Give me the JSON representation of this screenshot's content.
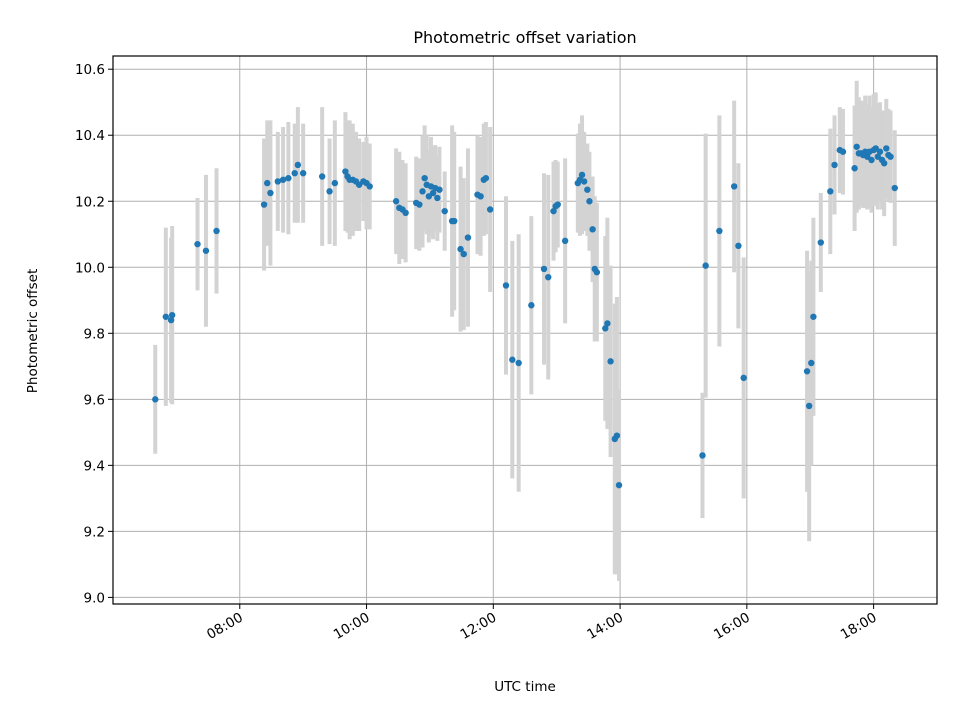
{
  "chart_data": {
    "type": "scatter",
    "title": "Photometric offset variation",
    "xlabel": "UTC time",
    "ylabel": "Photometric offset",
    "x_ticks": [
      "08:00",
      "10:00",
      "12:00",
      "14:00",
      "16:00",
      "18:00"
    ],
    "y_ticks": [
      "9.0",
      "9.2",
      "9.4",
      "9.6",
      "9.8",
      "10.0",
      "10.2",
      "10.4",
      "10.6"
    ],
    "x_tick_values": [
      "08:00",
      "10:00",
      "12:00",
      "14:00",
      "16:00",
      "18:00"
    ],
    "y_tick_values": [
      9.0,
      9.2,
      9.4,
      9.6,
      9.8,
      10.0,
      10.2,
      10.4,
      10.6
    ],
    "xlim": [
      "06:00",
      "19:00"
    ],
    "ylim": [
      8.98,
      10.64
    ],
    "grid": true,
    "colors": {
      "point": "#1f77b4",
      "errorbar": "#d3d3d3",
      "grid": "#b0b0b0"
    },
    "series": [
      {
        "points": [
          {
            "t": "06:40",
            "y": 9.6,
            "err": 0.165
          },
          {
            "t": "06:50",
            "y": 9.85,
            "err": 0.27
          },
          {
            "t": "06:55",
            "y": 9.84,
            "err": 0.25
          },
          {
            "t": "06:56",
            "y": 9.855,
            "err": 0.27
          },
          {
            "t": "07:20",
            "y": 10.07,
            "err": 0.14
          },
          {
            "t": "07:28",
            "y": 10.05,
            "err": 0.23
          },
          {
            "t": "07:38",
            "y": 10.11,
            "err": 0.19
          },
          {
            "t": "08:23",
            "y": 10.19,
            "err": 0.2
          },
          {
            "t": "08:26",
            "y": 10.255,
            "err": 0.19
          },
          {
            "t": "08:29",
            "y": 10.225,
            "err": 0.22
          },
          {
            "t": "08:36",
            "y": 10.26,
            "err": 0.15
          },
          {
            "t": "08:41",
            "y": 10.265,
            "err": 0.16
          },
          {
            "t": "08:46",
            "y": 10.27,
            "err": 0.17
          },
          {
            "t": "08:52",
            "y": 10.285,
            "err": 0.15
          },
          {
            "t": "08:55",
            "y": 10.31,
            "err": 0.175
          },
          {
            "t": "09:00",
            "y": 10.285,
            "err": 0.15
          },
          {
            "t": "09:18",
            "y": 10.275,
            "err": 0.21
          },
          {
            "t": "09:25",
            "y": 10.23,
            "err": 0.16
          },
          {
            "t": "09:30",
            "y": 10.255,
            "err": 0.19
          },
          {
            "t": "09:40",
            "y": 10.29,
            "err": 0.18
          },
          {
            "t": "09:42",
            "y": 10.275,
            "err": 0.17
          },
          {
            "t": "09:44",
            "y": 10.265,
            "err": 0.18
          },
          {
            "t": "09:47",
            "y": 10.265,
            "err": 0.17
          },
          {
            "t": "09:50",
            "y": 10.26,
            "err": 0.15
          },
          {
            "t": "09:53",
            "y": 10.25,
            "err": 0.14
          },
          {
            "t": "09:57",
            "y": 10.26,
            "err": 0.12
          },
          {
            "t": "10:00",
            "y": 10.255,
            "err": 0.14
          },
          {
            "t": "10:03",
            "y": 10.245,
            "err": 0.13
          },
          {
            "t": "10:28",
            "y": 10.2,
            "err": 0.16
          },
          {
            "t": "10:31",
            "y": 10.18,
            "err": 0.17
          },
          {
            "t": "10:34",
            "y": 10.175,
            "err": 0.15
          },
          {
            "t": "10:37",
            "y": 10.165,
            "err": 0.15
          },
          {
            "t": "10:47",
            "y": 10.195,
            "err": 0.14
          },
          {
            "t": "10:50",
            "y": 10.19,
            "err": 0.14
          },
          {
            "t": "10:53",
            "y": 10.23,
            "err": 0.17
          },
          {
            "t": "10:55",
            "y": 10.27,
            "err": 0.16
          },
          {
            "t": "10:57",
            "y": 10.25,
            "err": 0.15
          },
          {
            "t": "10:59",
            "y": 10.215,
            "err": 0.14
          },
          {
            "t": "11:01",
            "y": 10.245,
            "err": 0.15
          },
          {
            "t": "11:03",
            "y": 10.225,
            "err": 0.14
          },
          {
            "t": "11:05",
            "y": 10.24,
            "err": 0.13
          },
          {
            "t": "11:07",
            "y": 10.21,
            "err": 0.13
          },
          {
            "t": "11:09",
            "y": 10.235,
            "err": 0.13
          },
          {
            "t": "11:14",
            "y": 10.17,
            "err": 0.12
          },
          {
            "t": "11:21",
            "y": 10.14,
            "err": 0.29
          },
          {
            "t": "11:23",
            "y": 10.14,
            "err": 0.27
          },
          {
            "t": "11:29",
            "y": 10.055,
            "err": 0.25
          },
          {
            "t": "11:32",
            "y": 10.04,
            "err": 0.23
          },
          {
            "t": "11:36",
            "y": 10.09,
            "err": 0.27
          },
          {
            "t": "11:45",
            "y": 10.22,
            "err": 0.18
          },
          {
            "t": "11:48",
            "y": 10.215,
            "err": 0.18
          },
          {
            "t": "11:51",
            "y": 10.265,
            "err": 0.17
          },
          {
            "t": "11:53",
            "y": 10.27,
            "err": 0.17
          },
          {
            "t": "11:57",
            "y": 10.175,
            "err": 0.25
          },
          {
            "t": "12:12",
            "y": 9.945,
            "err": 0.27
          },
          {
            "t": "12:18",
            "y": 9.72,
            "err": 0.36
          },
          {
            "t": "12:24",
            "y": 9.71,
            "err": 0.39
          },
          {
            "t": "12:36",
            "y": 9.885,
            "err": 0.27
          },
          {
            "t": "12:48",
            "y": 9.995,
            "err": 0.29
          },
          {
            "t": "12:52",
            "y": 9.97,
            "err": 0.31
          },
          {
            "t": "12:57",
            "y": 10.17,
            "err": 0.15
          },
          {
            "t": "12:59",
            "y": 10.185,
            "err": 0.14
          },
          {
            "t": "13:01",
            "y": 10.19,
            "err": 0.13
          },
          {
            "t": "13:08",
            "y": 10.08,
            "err": 0.25
          },
          {
            "t": "13:20",
            "y": 10.255,
            "err": 0.15
          },
          {
            "t": "13:22",
            "y": 10.265,
            "err": 0.17
          },
          {
            "t": "13:24",
            "y": 10.28,
            "err": 0.18
          },
          {
            "t": "13:26",
            "y": 10.26,
            "err": 0.15
          },
          {
            "t": "13:29",
            "y": 10.235,
            "err": 0.14
          },
          {
            "t": "13:31",
            "y": 10.2,
            "err": 0.15
          },
          {
            "t": "13:34",
            "y": 10.115,
            "err": 0.16
          },
          {
            "t": "13:36",
            "y": 9.995,
            "err": 0.22
          },
          {
            "t": "13:38",
            "y": 9.985,
            "err": 0.21
          },
          {
            "t": "13:46",
            "y": 9.815,
            "err": 0.28
          },
          {
            "t": "13:48",
            "y": 9.83,
            "err": 0.32
          },
          {
            "t": "13:51",
            "y": 9.715,
            "err": 0.29
          },
          {
            "t": "13:55",
            "y": 9.48,
            "err": 0.41
          },
          {
            "t": "13:57",
            "y": 9.49,
            "err": 0.42
          },
          {
            "t": "13:59",
            "y": 9.34,
            "err": 0.29
          },
          {
            "t": "15:18",
            "y": 9.43,
            "err": 0.19
          },
          {
            "t": "15:21",
            "y": 10.005,
            "err": 0.4
          },
          {
            "t": "15:34",
            "y": 10.11,
            "err": 0.35
          },
          {
            "t": "15:48",
            "y": 10.245,
            "err": 0.26
          },
          {
            "t": "15:52",
            "y": 10.065,
            "err": 0.25
          },
          {
            "t": "15:57",
            "y": 9.665,
            "err": 0.365
          },
          {
            "t": "16:57",
            "y": 9.685,
            "err": 0.365
          },
          {
            "t": "16:59",
            "y": 9.58,
            "err": 0.41
          },
          {
            "t": "17:01",
            "y": 9.71,
            "err": 0.31
          },
          {
            "t": "17:03",
            "y": 9.85,
            "err": 0.3
          },
          {
            "t": "17:10",
            "y": 10.075,
            "err": 0.15
          },
          {
            "t": "17:19",
            "y": 10.23,
            "err": 0.19
          },
          {
            "t": "17:23",
            "y": 10.31,
            "err": 0.15
          },
          {
            "t": "17:28",
            "y": 10.355,
            "err": 0.13
          },
          {
            "t": "17:31",
            "y": 10.35,
            "err": 0.13
          },
          {
            "t": "17:42",
            "y": 10.3,
            "err": 0.19
          },
          {
            "t": "17:44",
            "y": 10.365,
            "err": 0.2
          },
          {
            "t": "17:46",
            "y": 10.345,
            "err": 0.17
          },
          {
            "t": "17:48",
            "y": 10.345,
            "err": 0.16
          },
          {
            "t": "17:50",
            "y": 10.34,
            "err": 0.16
          },
          {
            "t": "17:52",
            "y": 10.35,
            "err": 0.17
          },
          {
            "t": "17:54",
            "y": 10.335,
            "err": 0.16
          },
          {
            "t": "17:56",
            "y": 10.35,
            "err": 0.17
          },
          {
            "t": "17:58",
            "y": 10.325,
            "err": 0.16
          },
          {
            "t": "18:00",
            "y": 10.355,
            "err": 0.17
          },
          {
            "t": "18:02",
            "y": 10.36,
            "err": 0.17
          },
          {
            "t": "18:04",
            "y": 10.335,
            "err": 0.16
          },
          {
            "t": "18:06",
            "y": 10.35,
            "err": 0.15
          },
          {
            "t": "18:08",
            "y": 10.325,
            "err": 0.15
          },
          {
            "t": "18:10",
            "y": 10.315,
            "err": 0.16
          },
          {
            "t": "18:12",
            "y": 10.36,
            "err": 0.15
          },
          {
            "t": "18:14",
            "y": 10.34,
            "err": 0.14
          },
          {
            "t": "18:16",
            "y": 10.335,
            "err": 0.14
          },
          {
            "t": "18:20",
            "y": 10.24,
            "err": 0.175
          }
        ]
      }
    ]
  }
}
